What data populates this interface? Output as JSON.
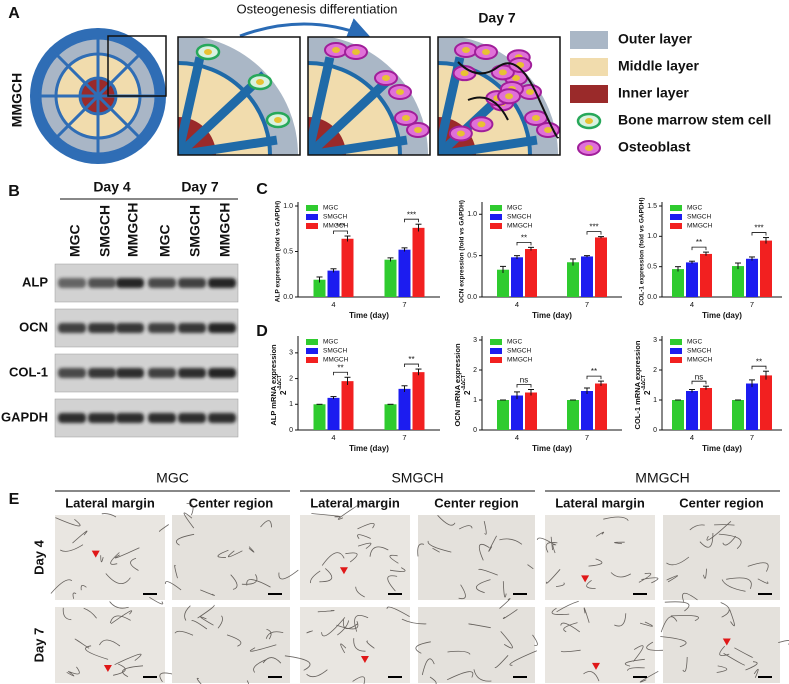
{
  "panel_a": {
    "label": "A",
    "row_label": "MMGCH",
    "arrow_label": "Osteogenesis differentiation",
    "day_label": "Day 7",
    "legend": [
      "Outer layer",
      "Middle layer",
      "Inner layer",
      "Bone marrow stem cell",
      "Osteoblast"
    ]
  },
  "panel_b": {
    "label": "B",
    "days": [
      "Day 4",
      "Day 7"
    ],
    "groups": [
      "MGC",
      "SMGCH",
      "MMGCH",
      "MGC",
      "SMGCH",
      "MMGCH"
    ],
    "proteins": [
      "ALP",
      "OCN",
      "COL-1",
      "GAPDH"
    ]
  },
  "panel_c": {
    "label": "C"
  },
  "panel_d": {
    "label": "D"
  },
  "chart_data": [
    {
      "type": "bar",
      "ylabel": "ALP expression (fold vs GAPDH)",
      "xlabel": "Time (day)",
      "categories": [
        "4",
        "7"
      ],
      "series": [
        {
          "name": "MGC",
          "color": "#2fcb2f",
          "values": [
            0.19,
            0.41
          ],
          "errors": [
            0.03,
            0.02
          ]
        },
        {
          "name": "SMGCH",
          "color": "#1c1cf0",
          "values": [
            0.29,
            0.52
          ],
          "errors": [
            0.02,
            0.02
          ]
        },
        {
          "name": "MMGCH",
          "color": "#f22020",
          "values": [
            0.64,
            0.76
          ],
          "errors": [
            0.03,
            0.04
          ]
        }
      ],
      "annotations": [
        "***",
        "***"
      ],
      "ylim": [
        0,
        1.0
      ],
      "yticks": [
        {
          "value": 0,
          "label": "0.0"
        },
        0.5,
        {
          "value": 1.0,
          "label": "1.0"
        }
      ]
    },
    {
      "type": "bar",
      "ylabel": "OCN expression (fold vs GAPDH)",
      "xlabel": "Time (day)",
      "categories": [
        "4",
        "7"
      ],
      "series": [
        {
          "name": "MGC",
          "color": "#2fcb2f",
          "values": [
            0.33,
            0.42
          ],
          "errors": [
            0.04,
            0.04
          ]
        },
        {
          "name": "SMGCH",
          "color": "#1c1cf0",
          "values": [
            0.48,
            0.49
          ],
          "errors": [
            0.02,
            0.01
          ]
        },
        {
          "name": "MMGCH",
          "color": "#f22020",
          "values": [
            0.58,
            0.72
          ],
          "errors": [
            0.02,
            0.01
          ]
        }
      ],
      "annotations": [
        "**",
        "***"
      ],
      "ylim": [
        0,
        1.1
      ],
      "yticks": [
        {
          "value": 0,
          "label": "0.0"
        },
        0.5,
        {
          "value": 1.0,
          "label": "1.0"
        }
      ]
    },
    {
      "type": "bar",
      "ylabel": "COL-1 expression (fold vs GAPDH)",
      "xlabel": "Time (day)",
      "categories": [
        "4",
        "7"
      ],
      "series": [
        {
          "name": "MGC",
          "color": "#2fcb2f",
          "values": [
            0.46,
            0.51
          ],
          "errors": [
            0.04,
            0.05
          ]
        },
        {
          "name": "SMGCH",
          "color": "#1c1cf0",
          "values": [
            0.57,
            0.63
          ],
          "errors": [
            0.02,
            0.03
          ]
        },
        {
          "name": "MMGCH",
          "color": "#f22020",
          "values": [
            0.71,
            0.93
          ],
          "errors": [
            0.03,
            0.05
          ]
        }
      ],
      "annotations": [
        "**",
        "***"
      ],
      "ylim": [
        0,
        1.5
      ],
      "yticks": [
        {
          "value": 0,
          "label": "0.0"
        },
        0.5,
        {
          "value": 1.0,
          "label": "1.0"
        },
        1.5
      ]
    },
    {
      "type": "bar",
      "ylabel": "ALP mRNA expression",
      "ylabel_formula": {
        "base": "2",
        "exponent": "-ΔΔCT"
      },
      "xlabel": "Time (day)",
      "categories": [
        "4",
        "7"
      ],
      "series": [
        {
          "name": "MGC",
          "color": "#2fcb2f",
          "values": [
            1,
            1
          ],
          "errors": [
            0,
            0
          ]
        },
        {
          "name": "SMGCH",
          "color": "#1c1cf0",
          "values": [
            1.25,
            1.6
          ],
          "errors": [
            0.05,
            0.12
          ]
        },
        {
          "name": "MMGCH",
          "color": "#f22020",
          "values": [
            1.9,
            2.25
          ],
          "errors": [
            0.15,
            0.12
          ]
        }
      ],
      "annotations": [
        "**",
        "**"
      ],
      "ylim": [
        0,
        3.5
      ],
      "yticks": [
        0,
        1,
        2,
        3
      ]
    },
    {
      "type": "bar",
      "ylabel": "OCN mRNA expression",
      "ylabel_formula": {
        "base": "2",
        "exponent": "-ΔΔCT"
      },
      "xlabel": "Time (day)",
      "categories": [
        "4",
        "7"
      ],
      "series": [
        {
          "name": "MGC",
          "color": "#2fcb2f",
          "values": [
            1,
            1
          ],
          "errors": [
            0,
            0
          ]
        },
        {
          "name": "SMGCH",
          "color": "#1c1cf0",
          "values": [
            1.15,
            1.3
          ],
          "errors": [
            0.12,
            0.1
          ]
        },
        {
          "name": "MMGCH",
          "color": "#f22020",
          "values": [
            1.25,
            1.55
          ],
          "errors": [
            0.1,
            0.08
          ]
        }
      ],
      "annotations": [
        "ns",
        "**"
      ],
      "ylim": [
        0,
        3
      ],
      "yticks": [
        0,
        1,
        2,
        3
      ]
    },
    {
      "type": "bar",
      "ylabel": "COL-1 mRNA expression",
      "ylabel_formula": {
        "base": "2",
        "exponent": "-ΔΔCT"
      },
      "xlabel": "Time (day)",
      "categories": [
        "4",
        "7"
      ],
      "series": [
        {
          "name": "MGC",
          "color": "#2fcb2f",
          "values": [
            1,
            1
          ],
          "errors": [
            0,
            0
          ]
        },
        {
          "name": "SMGCH",
          "color": "#1c1cf0",
          "values": [
            1.3,
            1.55
          ],
          "errors": [
            0.05,
            0.12
          ]
        },
        {
          "name": "MMGCH",
          "color": "#f22020",
          "values": [
            1.4,
            1.82
          ],
          "errors": [
            0.06,
            0.14
          ]
        }
      ],
      "annotations": [
        "ns",
        "**"
      ],
      "ylim": [
        0,
        3
      ],
      "yticks": [
        0,
        1,
        2,
        3
      ]
    }
  ],
  "panel_e": {
    "label": "E",
    "groups": [
      {
        "title": "MGC",
        "columns": [
          "Lateral margin",
          "Center region"
        ]
      },
      {
        "title": "SMGCH",
        "columns": [
          "Lateral margin",
          "Center region"
        ]
      },
      {
        "title": "MMGCH",
        "columns": [
          "Lateral margin",
          "Center region"
        ]
      }
    ],
    "rows": [
      "Day 4",
      "Day 7"
    ]
  }
}
